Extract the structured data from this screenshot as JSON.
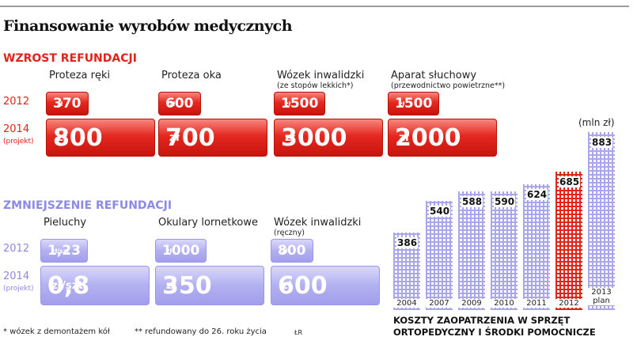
{
  "header": {
    "title": "Finansowanie wyrobów medycznych"
  },
  "increase": {
    "heading": "WZROST REFUNDACJI",
    "row_labels": [
      "2012",
      "2014",
      "(projekt)"
    ],
    "items": [
      {
        "name": "Proteza ręki",
        "v2012": 370,
        "v2014": 800,
        "unit": "zł"
      },
      {
        "name": "Proteza oka",
        "v2012": 600,
        "v2014": 700,
        "unit": "zł"
      },
      {
        "name": "Wózek inwalidzki",
        "note": "(ze stopów lekkich*)",
        "v2012": 1500,
        "v2014": 3000,
        "unit": "zł"
      },
      {
        "name": "Aparat słuchowy",
        "note": "(przewodnictwo powietrzne**)",
        "v2012": 1500,
        "v2014": 2000,
        "unit": "zł"
      }
    ]
  },
  "decrease": {
    "heading": "ZMNIEJSZENIE REFUNDACJI",
    "row_labels": [
      "2012",
      "2014",
      "(projekt)"
    ],
    "items": [
      {
        "name": "Pieluchy",
        "v2012": {
          "value": 1.23,
          "label": "1,23"
        },
        "v2014": {
          "value": 0.8,
          "label": "0,8"
        },
        "unit": "zł/szt"
      },
      {
        "name": "Okulary lornetkowe",
        "v2012": 1000,
        "v2014": 350,
        "unit": "zł"
      },
      {
        "name": "Wózek inwalidzki",
        "note": "(ręczny)",
        "v2012": 800,
        "v2014": 600,
        "unit": "zł"
      }
    ]
  },
  "chart_data": {
    "type": "bar",
    "unit_label": "(mln zł)",
    "caption": "KOSZTY ZAOPATRZENIA W SPRZĘT ORTOPEDYCZNY I ŚRODKI POMOCNICZE",
    "categories": [
      "2004",
      "2007",
      "2009",
      "2010",
      "2011",
      "2012",
      "2013 plan"
    ],
    "values": [
      386,
      540,
      588,
      590,
      624,
      685,
      883
    ],
    "colors": [
      "#a9a6ec",
      "#a9a6ec",
      "#a9a6ec",
      "#a9a6ec",
      "#a9a6ec",
      "#e2231a",
      "#a9a6ec"
    ]
  },
  "footnotes": [
    "* wózek z demontażem kół",
    "** refundowany do 26. roku życia"
  ],
  "credit": "ŁR"
}
